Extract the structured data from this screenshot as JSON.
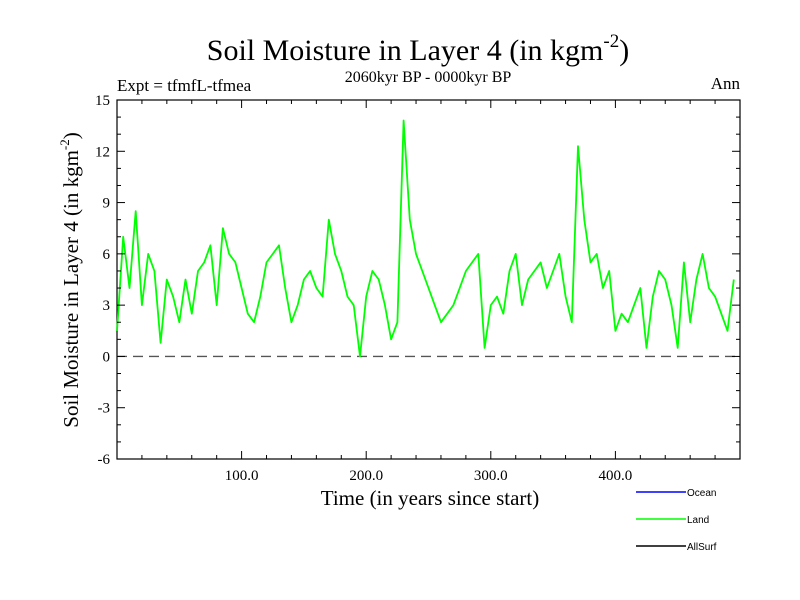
{
  "chart_data": {
    "type": "line",
    "title_main": "Soil Moisture in Layer 4 (in kgm",
    "title_sup": "-2",
    "title_close": ")",
    "subtitle": "2060kyr BP - 0000kyr BP",
    "left_label": "Expt = tfmfL-tfmea",
    "right_label": "Ann",
    "xlabel": "Time (in years since start)",
    "ylabel_main": "Soil Moisture in Layer 4 (in kgm",
    "ylabel_sup": "-2",
    "ylabel_close": ")",
    "xlim": [
      0,
      500
    ],
    "ylim": [
      -6,
      15
    ],
    "xticks": [
      100,
      200,
      300,
      400
    ],
    "xtick_labels": [
      "100.0",
      "200.0",
      "300.0",
      "400.0"
    ],
    "yticks": [
      -6,
      -3,
      0,
      3,
      6,
      9,
      12,
      15
    ],
    "ytick_labels": [
      "-6",
      "-3",
      "0",
      "3",
      "6",
      "9",
      "12",
      "15"
    ],
    "zero_line": 0,
    "legend": [
      {
        "name": "Ocean",
        "color": "#0000ff"
      },
      {
        "name": "Land",
        "color": "#00ff00"
      },
      {
        "name": "AllSurf",
        "color": "#000000"
      }
    ],
    "series": [
      {
        "name": "Land",
        "color": "#00ff00",
        "x_start": 0,
        "x_step": 5,
        "values": [
          1.5,
          7.0,
          4.0,
          8.5,
          3.0,
          6.0,
          5.0,
          0.8,
          4.5,
          3.5,
          2.0,
          4.5,
          2.5,
          5.0,
          5.5,
          6.5,
          3.0,
          7.5,
          6.0,
          5.5,
          4.0,
          2.5,
          2.0,
          3.5,
          5.5,
          6.0,
          6.5,
          4.0,
          2.0,
          3.0,
          4.5,
          5.0,
          4.0,
          3.5,
          8.0,
          6.0,
          5.0,
          3.5,
          3.0,
          0.0,
          3.5,
          5.0,
          4.5,
          3.0,
          1.0,
          2.0,
          13.8,
          8.0,
          6.0,
          5.0,
          4.0,
          3.0,
          2.0,
          2.5,
          3.0,
          4.0,
          5.0,
          5.5,
          6.0,
          0.5,
          3.0,
          3.5,
          2.5,
          5.0,
          6.0,
          3.0,
          4.5,
          5.0,
          5.5,
          4.0,
          5.0,
          6.0,
          3.5,
          2.0,
          12.3,
          8.0,
          5.5,
          6.0,
          4.0,
          5.0,
          1.5,
          2.5,
          2.0,
          3.0,
          4.0,
          0.5,
          3.5,
          5.0,
          4.5,
          3.0,
          0.5,
          5.5,
          2.0,
          4.5,
          6.0,
          4.0,
          3.5,
          2.5,
          1.5,
          4.5
        ]
      },
      {
        "name": "Ocean",
        "color": "#0000ff",
        "values": []
      },
      {
        "name": "AllSurf",
        "color": "#000000",
        "values": []
      }
    ]
  }
}
